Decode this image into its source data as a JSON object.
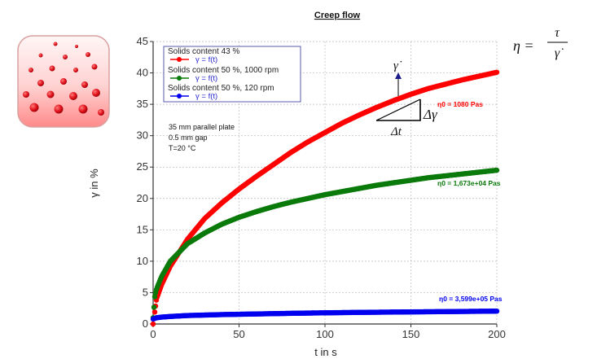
{
  "chart_data": {
    "type": "scatter",
    "title": "Creep flow",
    "xlabel": "t in s",
    "ylabel": "γ in %",
    "xlim": [
      0,
      200
    ],
    "ylim": [
      0,
      45
    ],
    "xticks": [
      "0",
      "50",
      "100",
      "150",
      "200"
    ],
    "yticks": [
      "0",
      "5",
      "10",
      "15",
      "20",
      "25",
      "30",
      "35",
      "40",
      "45"
    ],
    "grid": true,
    "legend_position": "top-left",
    "series": [
      {
        "name": "Solids content 43 %",
        "marker_label": "γ = f(t)",
        "color": "#ff0000",
        "x": [
          0,
          2,
          5,
          10,
          20,
          30,
          40,
          50,
          60,
          70,
          80,
          90,
          100,
          110,
          120,
          130,
          140,
          150,
          160,
          170,
          180,
          190,
          200
        ],
        "y": [
          0,
          4,
          6.3,
          9.2,
          13.5,
          16.8,
          19.3,
          21.5,
          23.5,
          25.4,
          27.3,
          29.0,
          30.5,
          32.0,
          33.3,
          34.5,
          35.6,
          36.6,
          37.5,
          38.2,
          38.9,
          39.5,
          40.1
        ],
        "annotation": "η0 = 1080 Pas"
      },
      {
        "name": "Solids content 50 %, 1000 rpm",
        "marker_label": "γ = f(t)",
        "color": "#0a7a0a",
        "x": [
          0,
          1,
          2,
          5,
          10,
          20,
          30,
          40,
          50,
          60,
          70,
          80,
          90,
          100,
          110,
          120,
          130,
          140,
          150,
          160,
          170,
          180,
          190,
          200
        ],
        "y": [
          1,
          4.5,
          5.6,
          7.6,
          10.0,
          12.8,
          14.5,
          15.9,
          17.0,
          17.9,
          18.7,
          19.4,
          20.0,
          20.6,
          21.1,
          21.6,
          22.1,
          22.5,
          22.9,
          23.3,
          23.6,
          23.9,
          24.2,
          24.5
        ],
        "annotation": "η0 = 1,673e+04 Pas"
      },
      {
        "name": "Solids content 50 %, 120 rpm",
        "marker_label": "γ = f(t)",
        "color": "#0000ee",
        "x": [
          0,
          2,
          5,
          10,
          20,
          40,
          60,
          80,
          100,
          120,
          140,
          160,
          180,
          200
        ],
        "y": [
          0.8,
          1.0,
          1.1,
          1.2,
          1.35,
          1.5,
          1.6,
          1.7,
          1.78,
          1.85,
          1.9,
          1.95,
          2.0,
          2.05
        ],
        "annotation": "η0 = 3,599e+05 Pas"
      }
    ],
    "notes": [
      "35 mm parallel plate",
      "0.5 mm gap",
      "T=20 °C"
    ],
    "formula": {
      "lhs": "η =",
      "numerator": "τ",
      "denominator": "γ̇"
    },
    "slope_labels": {
      "rate": "γ̇",
      "dgamma": "Δγ",
      "dt": "Δt"
    }
  }
}
